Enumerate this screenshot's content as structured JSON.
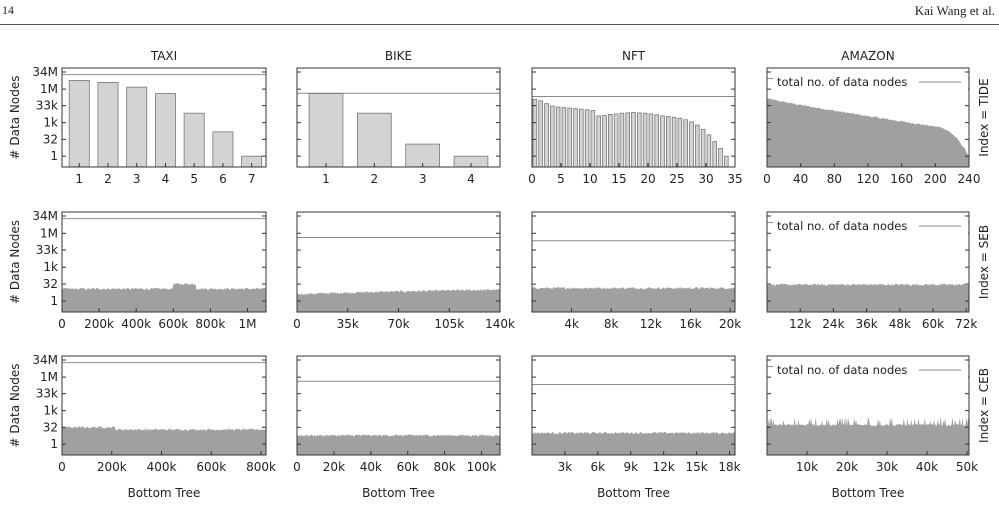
{
  "page": {
    "number": "14",
    "author": "Kai Wang et al."
  },
  "colors": {
    "bar_fill": "#d3d3d3",
    "bar_stroke": "#777777",
    "area_fill": "#a0a0a0",
    "ref_line": "#8c8c8c",
    "axis": "#333333"
  },
  "chart_data": {
    "type": "grid",
    "ylabel": "# Data Nodes",
    "xlabel": "Bottom Tree",
    "y_scale": "log",
    "y_ticks": [
      {
        "label": "34M",
        "value": 34000000
      },
      {
        "label": "1M",
        "value": 1000000
      },
      {
        "label": "33k",
        "value": 33000
      },
      {
        "label": "1k",
        "value": 1000
      },
      {
        "label": "32",
        "value": 32
      },
      {
        "label": "1",
        "value": 1
      }
    ],
    "columns": [
      "TAXI",
      "BIKE",
      "NFT",
      "AMAZON"
    ],
    "rows": [
      {
        "label": "Index = TIDE",
        "x_ticks": [
          [
            "1",
            "2",
            "3",
            "4",
            "5",
            "6",
            "7"
          ],
          [
            "1",
            "2",
            "3",
            "4"
          ],
          [
            "0",
            "5",
            "10",
            "15",
            "20",
            "25",
            "30",
            "35"
          ],
          [
            "0",
            "40",
            "80",
            "120",
            "160",
            "200",
            "240"
          ]
        ]
      },
      {
        "label": "Index = SEB",
        "x_ticks": [
          [
            "0",
            "200k",
            "400k",
            "600k",
            "800k",
            "1M"
          ],
          [
            "0",
            "35k",
            "70k",
            "105k",
            "140k"
          ],
          [
            "4k",
            "8k",
            "12k",
            "16k",
            "20k"
          ],
          [
            "12k",
            "24k",
            "36k",
            "48k",
            "60k",
            "72k"
          ]
        ]
      },
      {
        "label": "Index = CEB",
        "x_ticks": [
          [
            "0",
            "200k",
            "400k",
            "600k",
            "800k"
          ],
          [
            "0",
            "20k",
            "40k",
            "60k",
            "80k",
            "100k"
          ],
          [
            "3k",
            "6k",
            "9k",
            "12k",
            "15k",
            "18k"
          ],
          [
            "10k",
            "20k",
            "30k",
            "40k",
            "50k"
          ]
        ]
      }
    ],
    "legend": {
      "label": "total no. of data nodes",
      "placement": "top-right",
      "panels": [
        "TIDE/AMAZON",
        "SEB/AMAZON",
        "CEB/AMAZON"
      ]
    },
    "total_data_nodes": {
      "TAXI": 20000000,
      "BIKE": 430000,
      "NFT": 220000,
      "AMAZON": 9000000
    },
    "panels": [
      {
        "row": "TIDE",
        "column": "TAXI",
        "type": "bar",
        "categories": [
          1,
          2,
          3,
          4,
          5,
          6,
          7
        ],
        "values": [
          6000000,
          4000000,
          1500000,
          400000,
          7000,
          150,
          1
        ]
      },
      {
        "row": "TIDE",
        "column": "BIKE",
        "type": "bar",
        "categories": [
          1,
          2,
          3,
          4
        ],
        "values": [
          400000,
          7000,
          12,
          1
        ]
      },
      {
        "row": "TIDE",
        "column": "NFT",
        "type": "bar",
        "categories": [
          1,
          2,
          3,
          4,
          5,
          6,
          7,
          8,
          9,
          10,
          11,
          12,
          13,
          14,
          15,
          16,
          17,
          18,
          19,
          20,
          21,
          22,
          23,
          24,
          25,
          26,
          27,
          28,
          29,
          30,
          31,
          32,
          33,
          34
        ],
        "values": [
          120000,
          90000,
          50000,
          30000,
          25000,
          22000,
          20000,
          18000,
          16000,
          14000,
          12000,
          4000,
          4500,
          5500,
          6000,
          7000,
          7500,
          8000,
          7500,
          7000,
          6000,
          5000,
          4000,
          3500,
          3000,
          2500,
          1800,
          1200,
          600,
          250,
          80,
          20,
          5,
          1
        ]
      },
      {
        "row": "TIDE",
        "column": "AMAZON",
        "type": "area",
        "x_range": [
          0,
          240
        ],
        "shape": "decreasing",
        "y_start": 150000,
        "y_end": 1
      },
      {
        "row": "SEB",
        "column": "TAXI",
        "type": "area",
        "x_range": [
          0,
          1100000
        ],
        "level_median": 12,
        "level_bump": 32,
        "bump_range": [
          600000,
          720000
        ]
      },
      {
        "row": "SEB",
        "column": "BIKE",
        "type": "area",
        "x_range": [
          0,
          140000
        ],
        "level_start": 4,
        "level_end": 10
      },
      {
        "row": "SEB",
        "column": "NFT",
        "type": "area",
        "x_range": [
          0,
          20500
        ],
        "level_median": 14
      },
      {
        "row": "SEB",
        "column": "AMAZON",
        "type": "area",
        "x_range": [
          0,
          73000
        ],
        "level_median": 28
      },
      {
        "row": "CEB",
        "column": "TAXI",
        "type": "area",
        "x_range": [
          0,
          820000
        ],
        "level_median": 20,
        "step_at": 215000
      },
      {
        "row": "CEB",
        "column": "BIKE",
        "type": "area",
        "x_range": [
          0,
          110000
        ],
        "level_median": 6
      },
      {
        "row": "CEB",
        "column": "NFT",
        "type": "area",
        "x_range": [
          0,
          18500
        ],
        "level_median": 10
      },
      {
        "row": "CEB",
        "column": "AMAZON",
        "type": "area",
        "x_range": [
          0,
          50500
        ],
        "level_median": 40,
        "spiky": true
      }
    ]
  }
}
